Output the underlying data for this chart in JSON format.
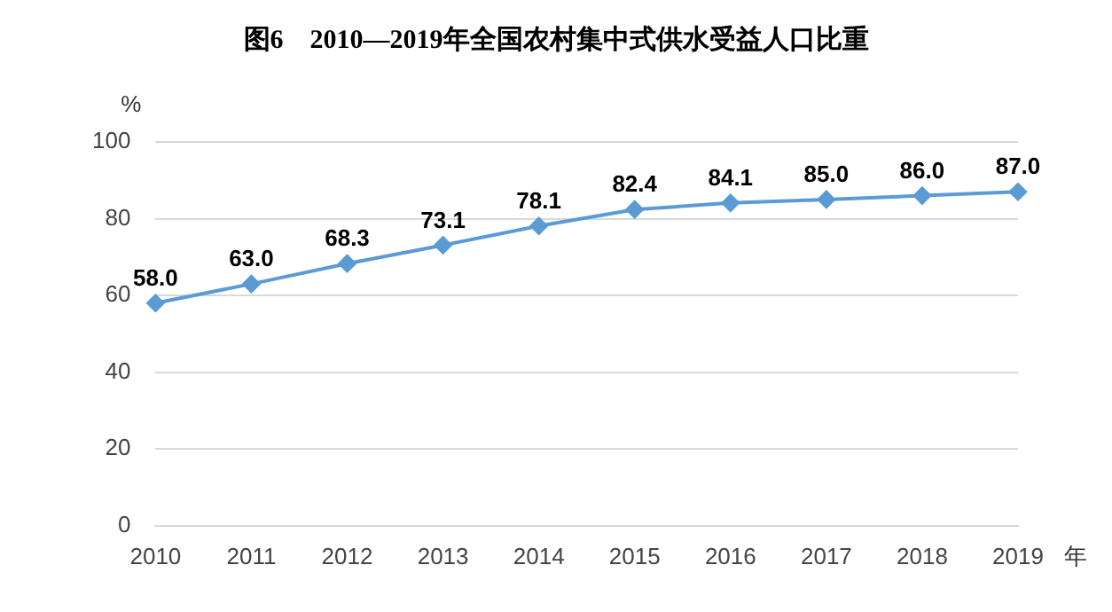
{
  "chart_data": {
    "type": "line",
    "title": "图6　2010—2019年全国农村集中式供水受益人口比重",
    "xlabel": "年",
    "ylabel": "%",
    "categories": [
      "2010",
      "2011",
      "2012",
      "2013",
      "2014",
      "2015",
      "2016",
      "2017",
      "2018",
      "2019"
    ],
    "series": [
      {
        "color": "#5b9bd5",
        "values": [
          58.0,
          63.0,
          68.3,
          73.1,
          78.1,
          82.4,
          84.1,
          85.0,
          86.0,
          87.0
        ]
      }
    ],
    "value_labels": [
      "58.0",
      "63.0",
      "68.3",
      "73.1",
      "78.1",
      "82.4",
      "84.1",
      "85.0",
      "86.0",
      "87.0"
    ],
    "ylim": [
      0,
      100
    ],
    "yticks": [
      0,
      20,
      40,
      60,
      80,
      100
    ],
    "grid": "y",
    "legend": false,
    "marker": "diamond",
    "line_style": "solid"
  }
}
